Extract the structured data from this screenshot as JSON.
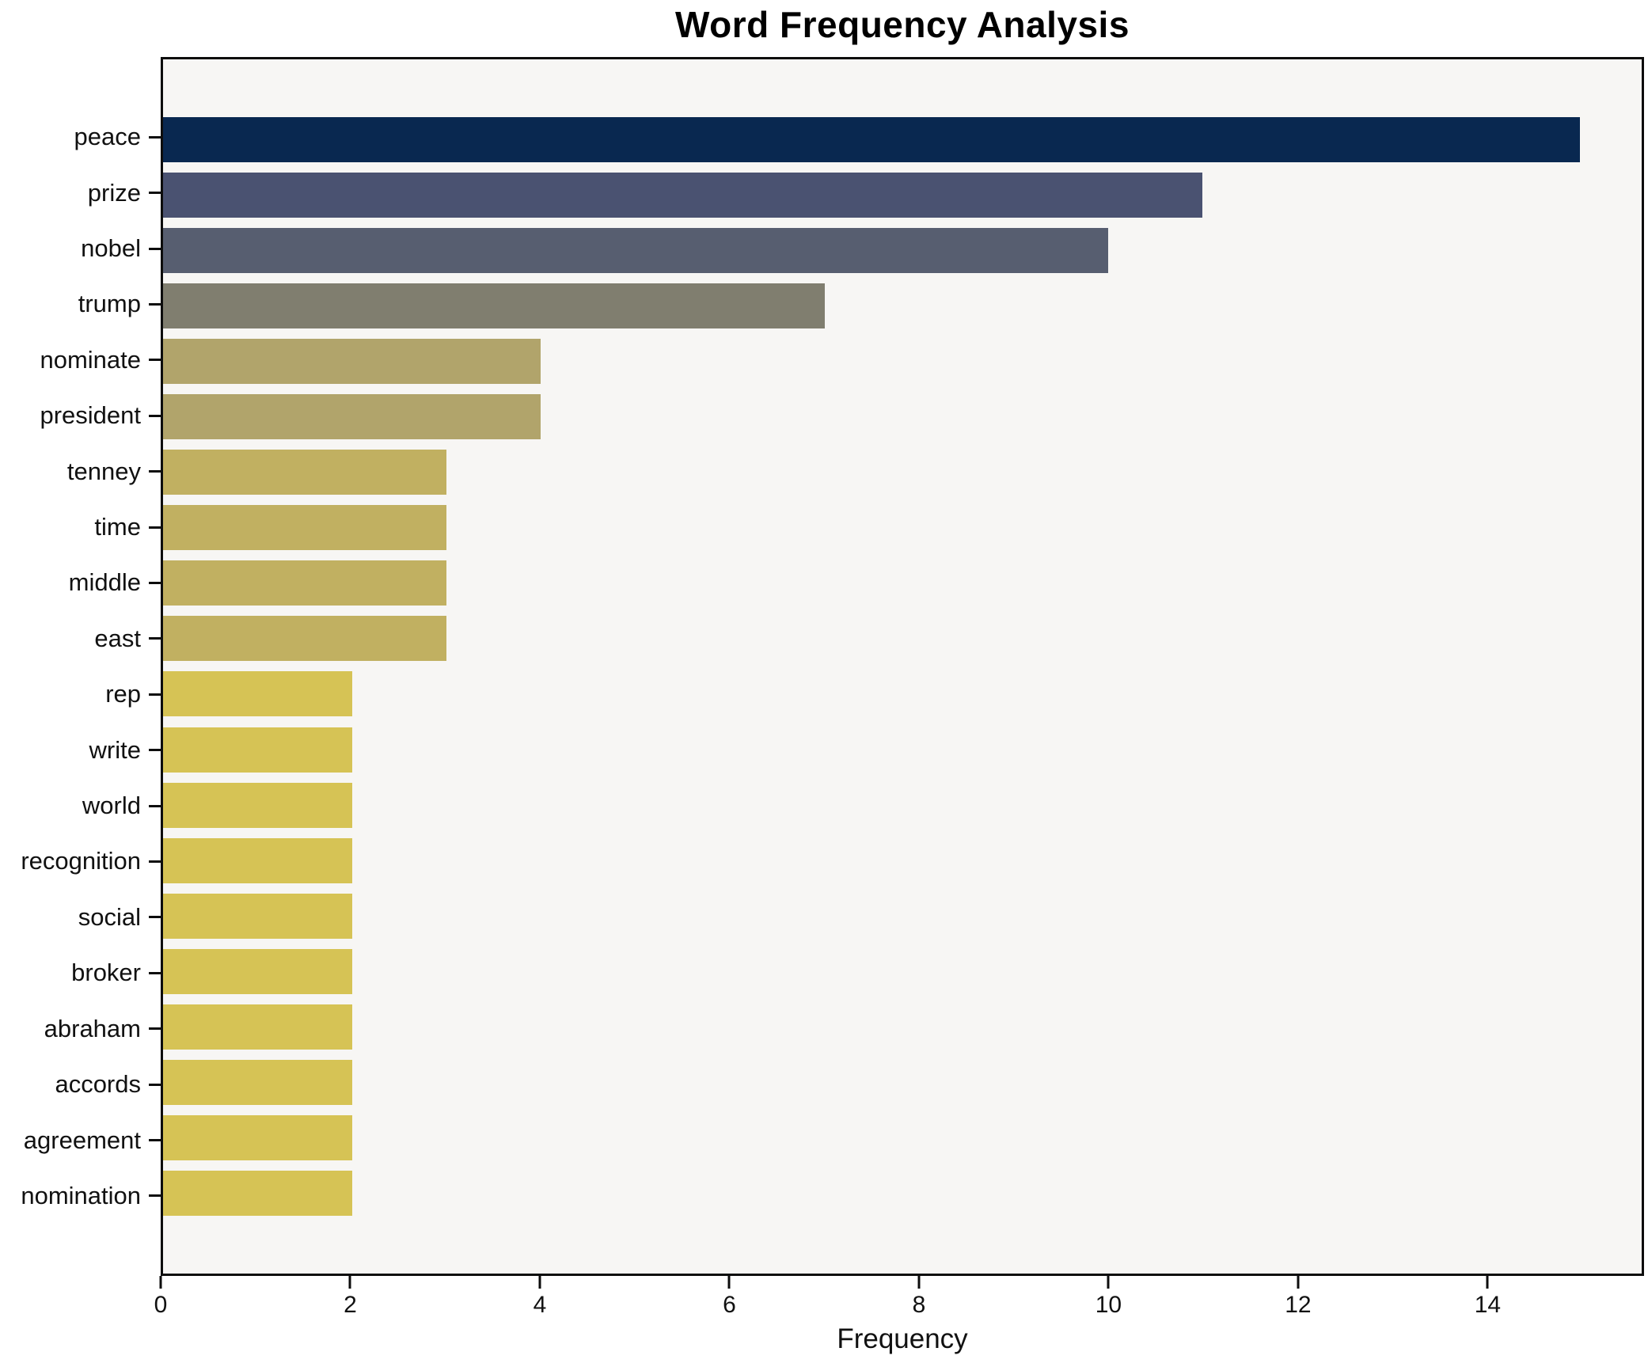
{
  "title": "Word Frequency Analysis",
  "xlabel": "Frequency",
  "chart_data": {
    "type": "bar",
    "orientation": "horizontal",
    "title": "Word Frequency Analysis",
    "xlabel": "Frequency",
    "ylabel": "",
    "grid": false,
    "legend": false,
    "plot_background": "#f7f6f4",
    "spine_color": "#0d0d0d",
    "xlim": [
      0,
      15.65
    ],
    "xticks": [
      0,
      2,
      4,
      6,
      8,
      10,
      12,
      14
    ],
    "categories": [
      "peace",
      "prize",
      "nobel",
      "trump",
      "nominate",
      "president",
      "tenney",
      "time",
      "middle",
      "east",
      "rep",
      "write",
      "world",
      "recognition",
      "social",
      "broker",
      "abraham",
      "accords",
      "agreement",
      "nomination"
    ],
    "values": [
      15,
      11,
      10,
      7,
      4,
      4,
      3,
      3,
      3,
      3,
      2,
      2,
      2,
      2,
      2,
      2,
      2,
      2,
      2,
      2
    ],
    "bar_colors": [
      "#092850",
      "#4a5271",
      "#575e70",
      "#807e6f",
      "#b1a46b",
      "#b1a46b",
      "#c1b061",
      "#c1b061",
      "#c1b061",
      "#c1b061",
      "#d6c355",
      "#d6c355",
      "#d6c355",
      "#d6c355",
      "#d6c355",
      "#d6c355",
      "#d6c355",
      "#d6c355",
      "#d6c355",
      "#d6c355"
    ]
  }
}
